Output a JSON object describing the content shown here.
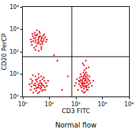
{
  "chart_data": {
    "type": "scatter",
    "caption": "Normal flow",
    "x_label": "CD3 FITC",
    "y_label": "CD20 PerCP",
    "log": true,
    "color": "#e3161e",
    "marker": "dot",
    "grid": false,
    "xlim": [
      1,
      10000
    ],
    "ylim": [
      1,
      10000
    ],
    "xticks": [
      {
        "value": 1,
        "label": "10⁰"
      },
      {
        "value": 10,
        "label": "10¹"
      },
      {
        "value": 100,
        "label": "10²"
      },
      {
        "value": 1000,
        "label": "10³"
      },
      {
        "value": 10000,
        "label": "10⁴"
      }
    ],
    "yticks": [
      {
        "value": 1,
        "label": "10⁰"
      },
      {
        "value": 10,
        "label": "10¹"
      },
      {
        "value": 100,
        "label": "10²"
      },
      {
        "value": 1000,
        "label": "10³"
      },
      {
        "value": 10000,
        "label": "10⁴"
      }
    ],
    "gates": {
      "x": 70,
      "y": 60
    },
    "x": [
      2.5,
      3,
      4,
      5,
      3.5,
      2.2,
      6,
      4.5,
      3.2,
      2.8,
      5.5,
      7,
      3.8,
      2.4,
      4.2,
      6.5,
      2,
      3,
      5,
      4,
      3.3,
      2.6,
      4.8,
      5.8,
      3.6,
      2.3,
      7.5,
      4.4,
      3.1,
      5.2,
      2.7,
      6.2,
      3.9,
      4.6,
      2.9,
      8,
      3.4,
      5.3,
      4.1,
      2.1,
      3,
      4,
      5,
      2,
      3,
      4,
      5,
      3.5,
      2.5,
      6,
      4.5,
      3,
      2.2,
      7,
      5.5,
      3.8,
      2.8,
      4.2,
      6.5,
      2,
      3.2,
      5,
      4,
      3.4,
      2.6,
      4.8,
      5.8,
      3.6,
      2.4,
      7.5,
      4.4,
      3.1,
      5.2,
      8,
      2.9,
      6.2,
      3.9,
      4.6,
      2.1,
      9,
      3.3,
      5.4,
      1.8,
      4.1,
      3.7,
      6.8,
      2.3,
      4.9,
      150,
      200,
      250,
      180,
      220,
      300,
      120,
      170,
      260,
      200,
      140,
      320,
      230,
      190,
      280,
      160,
      210,
      350,
      130,
      240,
      190,
      270,
      110,
      300,
      220,
      180,
      250,
      150,
      200,
      400,
      160,
      230,
      210,
      290,
      170,
      140,
      260,
      200,
      240,
      185,
      220,
      175,
      310,
      130,
      205,
      255,
      195,
      165,
      225,
      245,
      100,
      90,
      270,
      215,
      180,
      235,
      150,
      320,
      450,
      190,
      30,
      20,
      50,
      15
    ],
    "values": [
      300,
      420,
      250,
      380,
      600,
      200,
      300,
      500,
      180,
      700,
      220,
      450,
      350,
      480,
      800,
      600,
      350,
      260,
      160,
      420,
      530,
      390,
      310,
      520,
      230,
      620,
      280,
      680,
      330,
      440,
      150,
      380,
      290,
      210,
      560,
      350,
      900,
      270,
      460,
      270,
      120,
      110,
      130,
      2,
      3,
      2.5,
      4,
      6,
      1.5,
      3,
      5,
      8,
      4,
      2,
      6,
      3.5,
      2.2,
      1.6,
      5,
      6,
      1.8,
      2.5,
      7,
      4.5,
      3.2,
      3,
      2,
      2.6,
      9,
      4,
      4,
      5.5,
      1.8,
      3,
      3.8,
      7,
      10,
      2.2,
      2.8,
      5,
      2.4,
      3.4,
      3.5,
      3.1,
      1.4,
      2.6,
      5,
      8,
      3,
      4,
      2.5,
      6,
      10,
      3.5,
      2,
      5,
      7,
      2.2,
      4.5,
      5,
      3,
      12,
      2,
      8,
      15,
      4,
      3.5,
      5.5,
      2.8,
      9,
      6,
      20,
      1.6,
      3.2,
      4,
      10,
      6.5,
      3,
      2.5,
      8,
      3.8,
      6,
      1.8,
      7,
      3,
      25,
      12,
      4.2,
      5,
      3.6,
      2.6,
      5,
      9,
      2,
      1.5,
      4,
      6.2,
      18,
      4,
      3,
      4.6,
      2.8,
      30,
      40,
      5.5,
      8,
      5,
      7.5,
      2,
      40,
      8,
      70
    ]
  }
}
